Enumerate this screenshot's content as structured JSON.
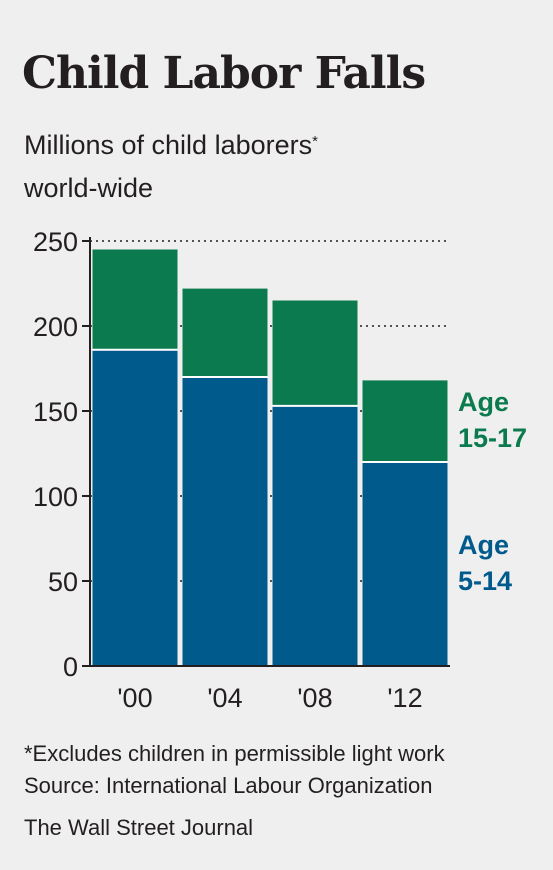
{
  "chart_data": {
    "type": "bar",
    "stacked": true,
    "title": "Child Labor Falls",
    "subtitle": "Millions of child laborers",
    "subtitle_line2": "world-wide",
    "subtitle_mark": "*",
    "categories": [
      "'00",
      "'04",
      "'08",
      "'12"
    ],
    "series": [
      {
        "name": "Age 5-14",
        "name_lines": [
          "Age",
          "5-14"
        ],
        "color": "#005a8b",
        "values": [
          186,
          170,
          153,
          120
        ]
      },
      {
        "name": "Age 15-17",
        "name_lines": [
          "Age",
          "15-17"
        ],
        "color": "#0b7b4f",
        "values": [
          59,
          52,
          62,
          48
        ]
      }
    ],
    "yticks": [
      0,
      50,
      100,
      150,
      200,
      250
    ],
    "ylim": [
      0,
      250
    ],
    "grid": "dotted",
    "legend": "right, labels beside last bar"
  },
  "footnote": "*Excludes children in permissible light work",
  "source": "Source: International Labour Organization",
  "credit": "The Wall Street Journal"
}
